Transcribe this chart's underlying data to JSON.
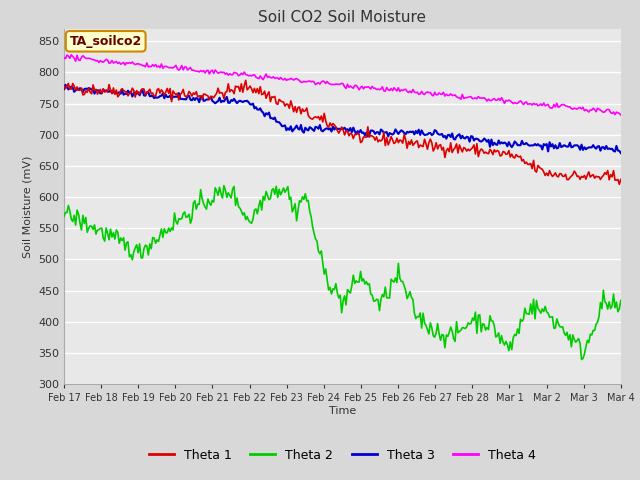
{
  "title": "Soil CO2 Soil Moisture",
  "ylabel": "Soil Moisture (mV)",
  "xlabel": "Time",
  "annotation": "TA_soilco2",
  "ylim": [
    300,
    870
  ],
  "yticks": [
    300,
    350,
    400,
    450,
    500,
    550,
    600,
    650,
    700,
    750,
    800,
    850
  ],
  "background_color": "#d8d8d8",
  "plot_bg_color": "#e8e8e8",
  "grid_color": "#ffffff",
  "xtick_labels": [
    "Feb 17",
    "Feb 18",
    "Feb 19",
    "Feb 20",
    "Feb 21",
    "Feb 22",
    "Feb 23",
    "Feb 24",
    "Feb 25",
    "Feb 26",
    "Feb 27",
    "Feb 28",
    "Mar 1",
    "Mar 2",
    "Mar 3",
    "Mar 4"
  ],
  "colors": {
    "theta1": "#dd0000",
    "theta2": "#00cc00",
    "theta3": "#0000cc",
    "theta4": "#ff00ff"
  },
  "legend_labels": [
    "Theta 1",
    "Theta 2",
    "Theta 3",
    "Theta 4"
  ]
}
